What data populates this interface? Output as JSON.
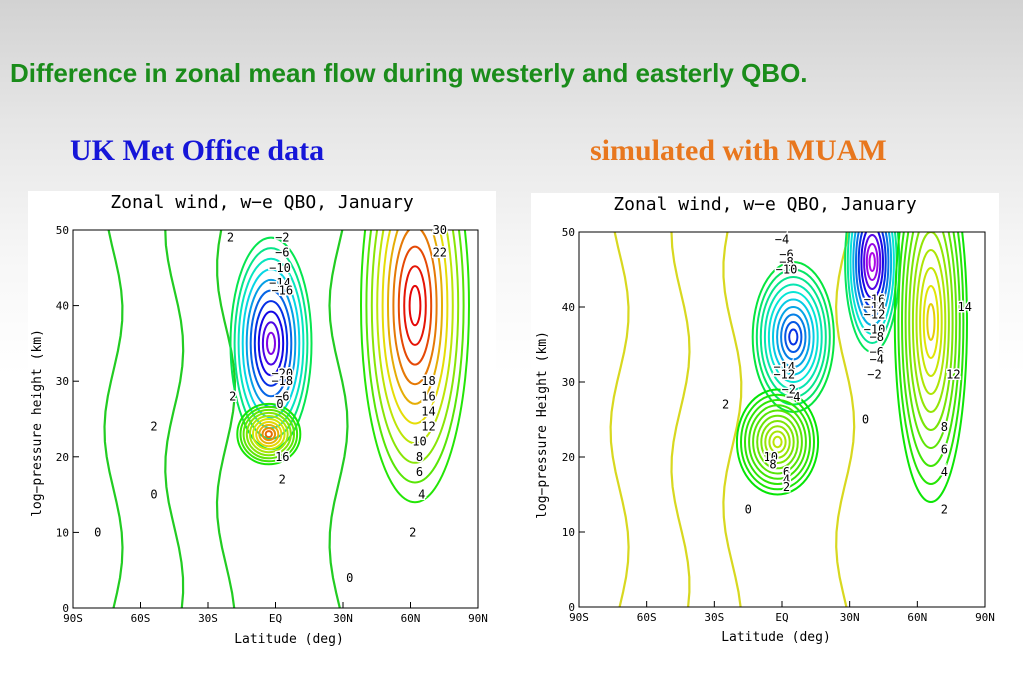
{
  "slide": {
    "title": "Difference in zonal mean flow during westerly and easterly QBO.",
    "left_subtitle": "UK Met Office data",
    "right_subtitle": "simulated with MUAM",
    "colors": {
      "title": "#1a8c1a",
      "left_subtitle": "#1616d8",
      "right_subtitle": "#e8771e"
    }
  },
  "chart_data": [
    {
      "type": "contour",
      "title": "Zonal wind, w−e QBO, January",
      "xlabel": "Latitude (deg)",
      "ylabel": "log−pressure height (km)",
      "xlim": [
        -90,
        90
      ],
      "ylim": [
        0,
        50
      ],
      "x_ticks": [
        "90S",
        "60S",
        "30S",
        "EQ",
        "30N",
        "60N",
        "90N"
      ],
      "y_ticks": [
        "0",
        "10",
        "20",
        "30",
        "40",
        "50"
      ],
      "grid": false,
      "features": [
        {
          "name": "equatorial easterly core",
          "lat": -2,
          "z": 35,
          "rx": 18,
          "rz": 14,
          "peak": -26
        },
        {
          "name": "equatorial westerly core",
          "lat": -3,
          "z": 23,
          "rx": 14,
          "rz": 4,
          "peak": 22
        },
        {
          "name": "northern polar night jet",
          "lat": 62,
          "z": 40,
          "rx": 24,
          "rz": 26,
          "peak": 30
        }
      ],
      "contour_labels": [
        {
          "text": "2",
          "lat": -20,
          "z": 49
        },
        {
          "text": "−2",
          "lat": 3,
          "z": 49
        },
        {
          "text": "−6",
          "lat": 3,
          "z": 47
        },
        {
          "text": "−10",
          "lat": 2,
          "z": 45
        },
        {
          "text": "−14",
          "lat": 2,
          "z": 43
        },
        {
          "text": "−16",
          "lat": 3,
          "z": 42
        },
        {
          "text": "−20",
          "lat": 3,
          "z": 31
        },
        {
          "text": "−18",
          "lat": 3,
          "z": 30
        },
        {
          "text": "−6",
          "lat": 3,
          "z": 28
        },
        {
          "text": "2",
          "lat": -19,
          "z": 28
        },
        {
          "text": "0",
          "lat": 2,
          "z": 27
        },
        {
          "text": "16",
          "lat": 3,
          "z": 20
        },
        {
          "text": "2",
          "lat": 3,
          "z": 17
        },
        {
          "text": "2",
          "lat": -54,
          "z": 24
        },
        {
          "text": "0",
          "lat": -54,
          "z": 15
        },
        {
          "text": "0",
          "lat": -79,
          "z": 10
        },
        {
          "text": "0",
          "lat": 33,
          "z": 4
        },
        {
          "text": "30",
          "lat": 73,
          "z": 50
        },
        {
          "text": "22",
          "lat": 73,
          "z": 47
        },
        {
          "text": "18",
          "lat": 68,
          "z": 30
        },
        {
          "text": "16",
          "lat": 68,
          "z": 28
        },
        {
          "text": "14",
          "lat": 68,
          "z": 26
        },
        {
          "text": "12",
          "lat": 68,
          "z": 24
        },
        {
          "text": "10",
          "lat": 64,
          "z": 22
        },
        {
          "text": "8",
          "lat": 64,
          "z": 20
        },
        {
          "text": "6",
          "lat": 64,
          "z": 18
        },
        {
          "text": "4",
          "lat": 65,
          "z": 15
        },
        {
          "text": "2",
          "lat": 61,
          "z": 10
        }
      ]
    },
    {
      "type": "contour",
      "title": "Zonal wind, w−e QBO, January",
      "xlabel": "Latitude (deg)",
      "ylabel": "log−pressure Height (km)",
      "xlim": [
        -90,
        90
      ],
      "ylim": [
        0,
        50
      ],
      "x_ticks": [
        "90S",
        "60S",
        "30S",
        "EQ",
        "30N",
        "60N",
        "90N"
      ],
      "y_ticks": [
        "0",
        "10",
        "20",
        "30",
        "40",
        "50"
      ],
      "grid": false,
      "features": [
        {
          "name": "equatorial easterly core",
          "lat": 5,
          "z": 36,
          "rx": 18,
          "rz": 10,
          "peak": -18
        },
        {
          "name": "upper easterly band",
          "lat": 40,
          "z": 46,
          "rx": 12,
          "rz": 12,
          "peak": -30
        },
        {
          "name": "equatorial westerly core",
          "lat": -2,
          "z": 22,
          "rx": 18,
          "rz": 7,
          "peak": 12
        },
        {
          "name": "northern polar jet",
          "lat": 66,
          "z": 38,
          "rx": 16,
          "rz": 24,
          "peak": 16
        }
      ],
      "contour_labels": [
        {
          "text": "−4",
          "lat": 0,
          "z": 49
        },
        {
          "text": "−6",
          "lat": 2,
          "z": 47
        },
        {
          "text": "−8",
          "lat": 2,
          "z": 46
        },
        {
          "text": "−10",
          "lat": 2,
          "z": 45
        },
        {
          "text": "−16",
          "lat": 41,
          "z": 41
        },
        {
          "text": "−14",
          "lat": 41,
          "z": 40
        },
        {
          "text": "−12",
          "lat": 41,
          "z": 39
        },
        {
          "text": "−10",
          "lat": 41,
          "z": 37
        },
        {
          "text": "−8",
          "lat": 42,
          "z": 36
        },
        {
          "text": "−6",
          "lat": 42,
          "z": 34
        },
        {
          "text": "−4",
          "lat": 42,
          "z": 33
        },
        {
          "text": "−2",
          "lat": 41,
          "z": 31
        },
        {
          "text": "−14",
          "lat": 1,
          "z": 32
        },
        {
          "text": "−12",
          "lat": 1,
          "z": 31
        },
        {
          "text": "−2",
          "lat": 3,
          "z": 29
        },
        {
          "text": "−4",
          "lat": 5,
          "z": 28
        },
        {
          "text": "2",
          "lat": -25,
          "z": 27
        },
        {
          "text": "0",
          "lat": 37,
          "z": 25
        },
        {
          "text": "14",
          "lat": 81,
          "z": 40
        },
        {
          "text": "12",
          "lat": 76,
          "z": 31
        },
        {
          "text": "8",
          "lat": 72,
          "z": 24
        },
        {
          "text": "6",
          "lat": 72,
          "z": 21
        },
        {
          "text": "4",
          "lat": 72,
          "z": 18
        },
        {
          "text": "2",
          "lat": 72,
          "z": 13
        },
        {
          "text": "10",
          "lat": -5,
          "z": 20
        },
        {
          "text": "8",
          "lat": -4,
          "z": 19
        },
        {
          "text": "6",
          "lat": 2,
          "z": 18
        },
        {
          "text": "4",
          "lat": 2,
          "z": 17
        },
        {
          "text": "2",
          "lat": 2,
          "z": 16
        },
        {
          "text": "0",
          "lat": -15,
          "z": 13
        }
      ]
    }
  ]
}
